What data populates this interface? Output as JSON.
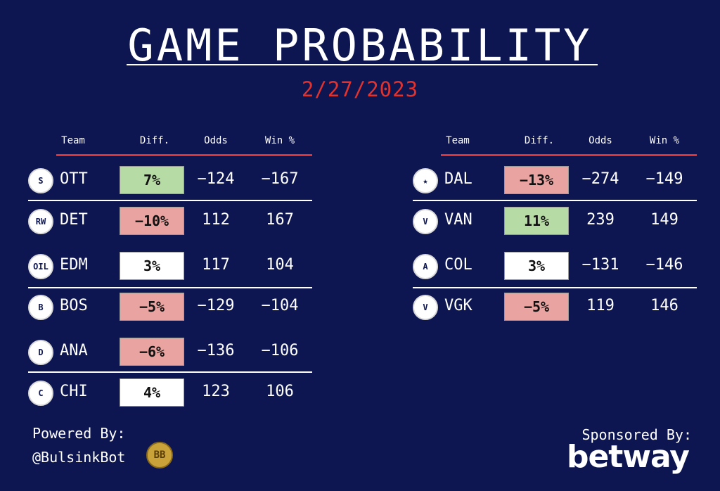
{
  "title": "GAME PROBABILITY",
  "date": "2/27/2023",
  "headers": {
    "team": "Team",
    "diff": "Diff.",
    "odds": "Odds",
    "win": "Win %"
  },
  "colors": {
    "positive": "#b7dba4",
    "negative": "#e9a3a0",
    "neutral": "#ffffff",
    "accent": "#e0322e",
    "background": "#0d1650"
  },
  "left_games": [
    {
      "team": "OTT",
      "logo_icon": "senators-logo-icon",
      "logo_text": "S",
      "diff": "7%",
      "tone": "positive",
      "odds": "−124",
      "win": "−167"
    },
    {
      "team": "DET",
      "logo_icon": "red-wings-logo-icon",
      "logo_text": "RW",
      "diff": "−10%",
      "tone": "negative",
      "odds": "112",
      "win": "167"
    },
    {
      "team": "EDM",
      "logo_icon": "oilers-logo-icon",
      "logo_text": "OIL",
      "diff": "3%",
      "tone": "neutral",
      "odds": "117",
      "win": "104"
    },
    {
      "team": "BOS",
      "logo_icon": "bruins-logo-icon",
      "logo_text": "B",
      "diff": "−5%",
      "tone": "negative",
      "odds": "−129",
      "win": "−104"
    },
    {
      "team": "ANA",
      "logo_icon": "ducks-logo-icon",
      "logo_text": "D",
      "diff": "−6%",
      "tone": "negative",
      "odds": "−136",
      "win": "−106"
    },
    {
      "team": "CHI",
      "logo_icon": "blackhawks-logo-icon",
      "logo_text": "C",
      "diff": "4%",
      "tone": "neutral",
      "odds": "123",
      "win": "106"
    }
  ],
  "right_games": [
    {
      "team": "DAL",
      "logo_icon": "stars-logo-icon",
      "logo_text": "★",
      "diff": "−13%",
      "tone": "negative",
      "odds": "−274",
      "win": "−149"
    },
    {
      "team": "VAN",
      "logo_icon": "canucks-logo-icon",
      "logo_text": "V",
      "diff": "11%",
      "tone": "positive",
      "odds": "239",
      "win": "149"
    },
    {
      "team": "COL",
      "logo_icon": "avalanche-logo-icon",
      "logo_text": "A",
      "diff": "3%",
      "tone": "neutral",
      "odds": "−131",
      "win": "−146"
    },
    {
      "team": "VGK",
      "logo_icon": "golden-knights-logo-icon",
      "logo_text": "V",
      "diff": "−5%",
      "tone": "negative",
      "odds": "119",
      "win": "146"
    }
  ],
  "footer": {
    "powered_label": "Powered By:",
    "handle": "@BulsinkBot",
    "bb_logo_text": "BB",
    "sponsored_label": "Sponsored By:",
    "sponsor": "betway"
  }
}
